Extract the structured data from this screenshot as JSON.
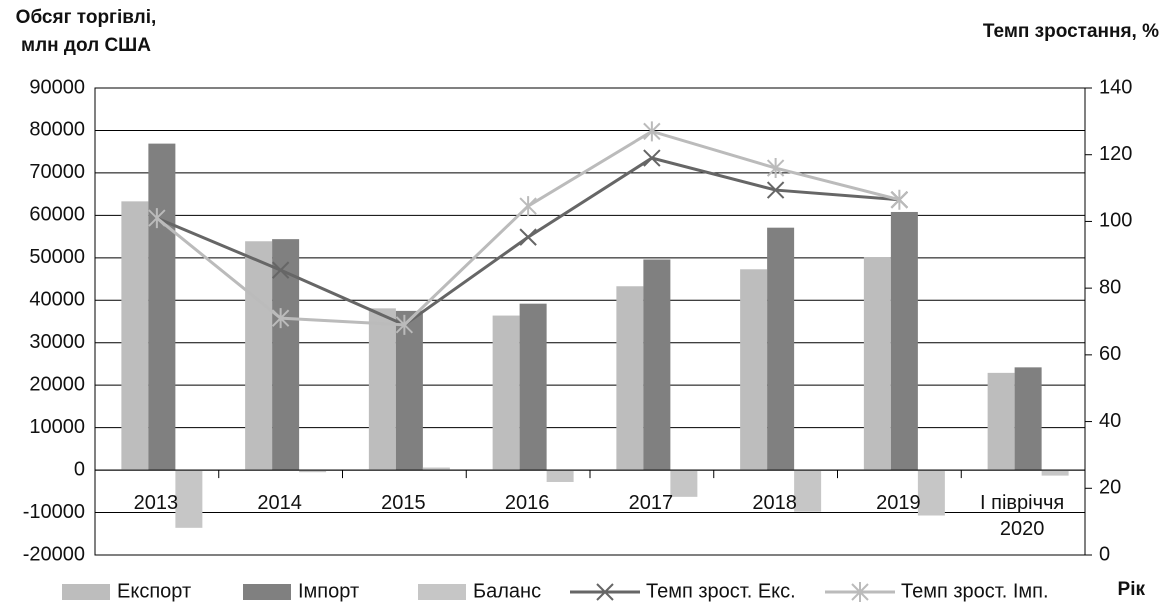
{
  "chart_data": {
    "type": "bar",
    "ylabel": "Обсяг торгівлі, млн дол США",
    "y2label": "Темп зростання, %",
    "xlabel": "Рік",
    "categories": [
      "2013",
      "2014",
      "2015",
      "2016",
      "2017",
      "2018",
      "2019",
      "I півріччя 2020"
    ],
    "series": [
      {
        "name": "Експорт",
        "type": "bar",
        "color": "#bdbdbd",
        "values": [
          63300,
          53900,
          38100,
          36400,
          43300,
          47300,
          50100,
          22900
        ]
      },
      {
        "name": "Імпорт",
        "type": "bar",
        "color": "#808080",
        "values": [
          76900,
          54400,
          37500,
          39200,
          49600,
          57100,
          60800,
          24200
        ]
      },
      {
        "name": "Баланс",
        "type": "bar",
        "color": "#c6c6c6",
        "values": [
          -13600,
          -500,
          600,
          -2800,
          -6300,
          -9800,
          -10700,
          -1300
        ]
      },
      {
        "name": "Темп зрост. Екс.",
        "type": "line",
        "axis": "y2",
        "marker": "x",
        "color": "#666666",
        "values": [
          101,
          85.4,
          69,
          95.3,
          119,
          109.4,
          106.5,
          null
        ]
      },
      {
        "name": "Темп зрост. Імп.",
        "type": "line",
        "axis": "y2",
        "marker": "star",
        "color": "#bbbbbb",
        "values": [
          101,
          71,
          69,
          104.6,
          127,
          116,
          106.5,
          null
        ]
      }
    ],
    "ylim": [
      -20000,
      90000
    ],
    "yticks": [
      -20000,
      -10000,
      0,
      10000,
      20000,
      30000,
      40000,
      50000,
      60000,
      70000,
      80000,
      90000
    ],
    "y2lim": [
      0,
      140
    ],
    "y2ticks": [
      0,
      20,
      40,
      60,
      80,
      100,
      120,
      140
    ],
    "grid": true,
    "legend": "bottom"
  }
}
